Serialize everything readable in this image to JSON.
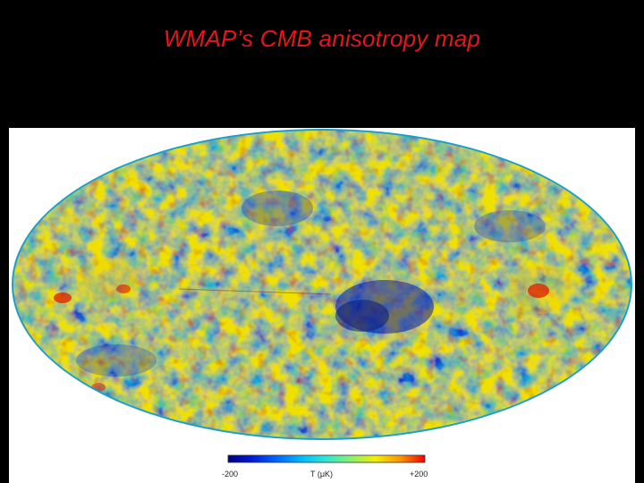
{
  "title": "WMAP’s CMB anisotropy map",
  "colors": {
    "background": "#000000",
    "title": "#e8141b",
    "map_low": "#00008f",
    "map_mid": "#1fb0e0",
    "map_high": "#c80000"
  },
  "colorbar": {
    "min_label": "-200",
    "max_label": "+200",
    "unit_label": "T (μK)",
    "scale_min": -200,
    "scale_max": 200,
    "stops": [
      "#00007f",
      "#0018d8",
      "#0068ff",
      "#00c0ff",
      "#30e8d0",
      "#88f070",
      "#f0f000",
      "#ff9000",
      "#f00000"
    ]
  }
}
